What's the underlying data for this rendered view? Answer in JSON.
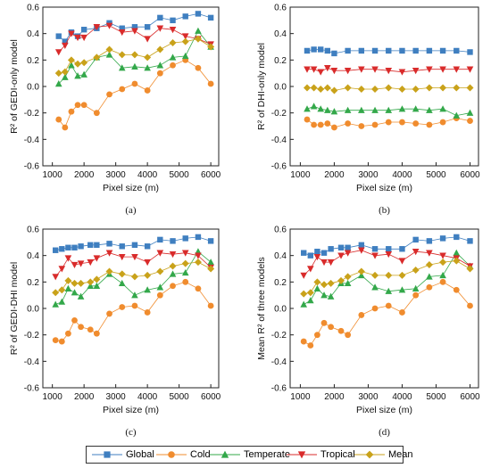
{
  "chart_data": [
    {
      "panel_label": "(a)",
      "type": "line",
      "xlabel": "Pixel size (m)",
      "ylabel": "R² of GEDI-only model",
      "xlim": [
        700,
        6250
      ],
      "ylim": [
        -0.6,
        0.6
      ],
      "xticks": [
        1000,
        2000,
        3000,
        4000,
        5000,
        6000
      ],
      "yticks": [
        -0.6,
        -0.4,
        -0.2,
        0.0,
        0.2,
        0.4,
        0.6
      ],
      "x": [
        1200,
        1400,
        1600,
        1800,
        2000,
        2400,
        2800,
        3200,
        3600,
        4000,
        4400,
        4800,
        5200,
        5600,
        6000
      ],
      "series": [
        {
          "name": "Global",
          "values": [
            0.38,
            0.34,
            0.41,
            0.38,
            0.43,
            0.44,
            0.48,
            0.44,
            0.45,
            0.45,
            0.52,
            0.5,
            0.53,
            0.55,
            0.52
          ]
        },
        {
          "name": "Cold",
          "values": [
            -0.25,
            -0.31,
            -0.19,
            -0.14,
            -0.14,
            -0.2,
            -0.06,
            -0.02,
            0.02,
            -0.03,
            0.1,
            0.16,
            0.2,
            0.14,
            0.02
          ]
        },
        {
          "name": "Temperate",
          "values": [
            0.02,
            0.07,
            0.16,
            0.08,
            0.09,
            0.22,
            0.24,
            0.14,
            0.15,
            0.14,
            0.16,
            0.22,
            0.23,
            0.42,
            0.3
          ]
        },
        {
          "name": "Tropical",
          "values": [
            0.26,
            0.31,
            0.4,
            0.37,
            0.37,
            0.45,
            0.46,
            0.41,
            0.42,
            0.36,
            0.44,
            0.43,
            0.38,
            0.36,
            0.32
          ]
        },
        {
          "name": "Mean",
          "values": [
            0.1,
            0.11,
            0.2,
            0.17,
            0.18,
            0.22,
            0.28,
            0.24,
            0.24,
            0.22,
            0.28,
            0.33,
            0.34,
            0.36,
            0.3
          ]
        }
      ]
    },
    {
      "panel_label": "(b)",
      "type": "line",
      "xlabel": "Pixel size (m)",
      "ylabel": "R² of DHI-only model",
      "xlim": [
        700,
        6250
      ],
      "ylim": [
        -0.6,
        0.6
      ],
      "xticks": [
        1000,
        2000,
        3000,
        4000,
        5000,
        6000
      ],
      "yticks": [
        -0.6,
        -0.4,
        -0.2,
        0.0,
        0.2,
        0.4,
        0.6
      ],
      "x": [
        1200,
        1400,
        1600,
        1800,
        2000,
        2400,
        2800,
        3200,
        3600,
        4000,
        4400,
        4800,
        5200,
        5600,
        6000
      ],
      "series": [
        {
          "name": "Global",
          "values": [
            0.27,
            0.28,
            0.28,
            0.27,
            0.25,
            0.27,
            0.27,
            0.27,
            0.27,
            0.27,
            0.27,
            0.27,
            0.27,
            0.27,
            0.26
          ]
        },
        {
          "name": "Cold",
          "values": [
            -0.25,
            -0.29,
            -0.29,
            -0.28,
            -0.31,
            -0.28,
            -0.3,
            -0.29,
            -0.27,
            -0.27,
            -0.28,
            -0.29,
            -0.27,
            -0.24,
            -0.26
          ]
        },
        {
          "name": "Temperate",
          "values": [
            -0.17,
            -0.15,
            -0.17,
            -0.18,
            -0.19,
            -0.18,
            -0.18,
            -0.18,
            -0.18,
            -0.17,
            -0.17,
            -0.18,
            -0.17,
            -0.22,
            -0.2
          ]
        },
        {
          "name": "Tropical",
          "values": [
            0.13,
            0.13,
            0.11,
            0.14,
            0.12,
            0.12,
            0.13,
            0.13,
            0.12,
            0.11,
            0.12,
            0.13,
            0.13,
            0.13,
            0.13
          ]
        },
        {
          "name": "Mean",
          "values": [
            -0.01,
            -0.01,
            -0.02,
            -0.01,
            -0.03,
            -0.01,
            -0.02,
            -0.02,
            -0.01,
            -0.02,
            -0.02,
            -0.01,
            -0.01,
            -0.01,
            -0.01
          ]
        }
      ]
    },
    {
      "panel_label": "(c)",
      "type": "line",
      "xlabel": "Pixel size (m)",
      "ylabel": "R² of GEDI-DHI model",
      "xlim": [
        700,
        6250
      ],
      "ylim": [
        -0.6,
        0.6
      ],
      "xticks": [
        1000,
        2000,
        3000,
        4000,
        5000,
        6000
      ],
      "yticks": [
        -0.6,
        -0.4,
        -0.2,
        0.0,
        0.2,
        0.4,
        0.6
      ],
      "x": [
        1100,
        1300,
        1500,
        1700,
        1900,
        2200,
        2400,
        2800,
        3200,
        3600,
        4000,
        4400,
        4800,
        5200,
        5600,
        6000
      ],
      "series": [
        {
          "name": "Global",
          "values": [
            0.44,
            0.45,
            0.46,
            0.46,
            0.47,
            0.48,
            0.48,
            0.49,
            0.47,
            0.48,
            0.47,
            0.52,
            0.51,
            0.53,
            0.54,
            0.51
          ]
        },
        {
          "name": "Cold",
          "values": [
            -0.24,
            -0.25,
            -0.19,
            -0.09,
            -0.14,
            -0.16,
            -0.19,
            -0.04,
            0.01,
            0.02,
            -0.03,
            0.1,
            0.17,
            0.2,
            0.15,
            0.02
          ]
        },
        {
          "name": "Temperate",
          "values": [
            0.03,
            0.05,
            0.15,
            0.12,
            0.09,
            0.17,
            0.17,
            0.26,
            0.19,
            0.1,
            0.14,
            0.16,
            0.26,
            0.27,
            0.43,
            0.35
          ]
        },
        {
          "name": "Tropical",
          "values": [
            0.24,
            0.3,
            0.38,
            0.33,
            0.34,
            0.35,
            0.38,
            0.42,
            0.39,
            0.39,
            0.35,
            0.42,
            0.41,
            0.42,
            0.4,
            0.31
          ]
        },
        {
          "name": "Mean",
          "values": [
            0.12,
            0.14,
            0.21,
            0.19,
            0.19,
            0.2,
            0.22,
            0.28,
            0.26,
            0.24,
            0.25,
            0.28,
            0.32,
            0.34,
            0.35,
            0.3
          ]
        }
      ]
    },
    {
      "panel_label": "(d)",
      "type": "line",
      "xlabel": "Pixel size (m)",
      "ylabel": "Mean R² of three models",
      "xlim": [
        700,
        6250
      ],
      "ylim": [
        -0.6,
        0.6
      ],
      "xticks": [
        1000,
        2000,
        3000,
        4000,
        5000,
        6000
      ],
      "yticks": [
        -0.6,
        -0.4,
        -0.2,
        0.0,
        0.2,
        0.4,
        0.6
      ],
      "x": [
        1100,
        1300,
        1500,
        1700,
        1900,
        2200,
        2400,
        2800,
        3200,
        3600,
        4000,
        4400,
        4800,
        5200,
        5600,
        6000
      ],
      "series": [
        {
          "name": "Global",
          "values": [
            0.42,
            0.4,
            0.43,
            0.42,
            0.45,
            0.46,
            0.46,
            0.48,
            0.45,
            0.45,
            0.45,
            0.52,
            0.51,
            0.53,
            0.54,
            0.51
          ]
        },
        {
          "name": "Cold",
          "values": [
            -0.25,
            -0.28,
            -0.2,
            -0.11,
            -0.14,
            -0.17,
            -0.2,
            -0.05,
            0.0,
            0.02,
            -0.03,
            0.1,
            0.16,
            0.2,
            0.14,
            0.02
          ]
        },
        {
          "name": "Temperate",
          "values": [
            0.03,
            0.06,
            0.15,
            0.1,
            0.09,
            0.19,
            0.19,
            0.25,
            0.16,
            0.13,
            0.14,
            0.15,
            0.24,
            0.25,
            0.42,
            0.32
          ]
        },
        {
          "name": "Tropical",
          "values": [
            0.25,
            0.3,
            0.39,
            0.35,
            0.35,
            0.4,
            0.42,
            0.44,
            0.4,
            0.41,
            0.36,
            0.43,
            0.42,
            0.4,
            0.38,
            0.32
          ]
        },
        {
          "name": "Mean",
          "values": [
            0.11,
            0.12,
            0.2,
            0.18,
            0.19,
            0.21,
            0.24,
            0.28,
            0.25,
            0.25,
            0.25,
            0.29,
            0.33,
            0.35,
            0.36,
            0.3
          ]
        }
      ]
    }
  ],
  "legend": {
    "items": [
      {
        "name": "Global",
        "color": "#3f7fc0",
        "marker": "square"
      },
      {
        "name": "Cold",
        "color": "#f08c2e",
        "marker": "circle"
      },
      {
        "name": "Temperate",
        "color": "#33a84a",
        "marker": "triangle-up"
      },
      {
        "name": "Tropical",
        "color": "#d92b2b",
        "marker": "triangle-down"
      },
      {
        "name": "Mean",
        "color": "#c9a21a",
        "marker": "diamond"
      }
    ]
  }
}
